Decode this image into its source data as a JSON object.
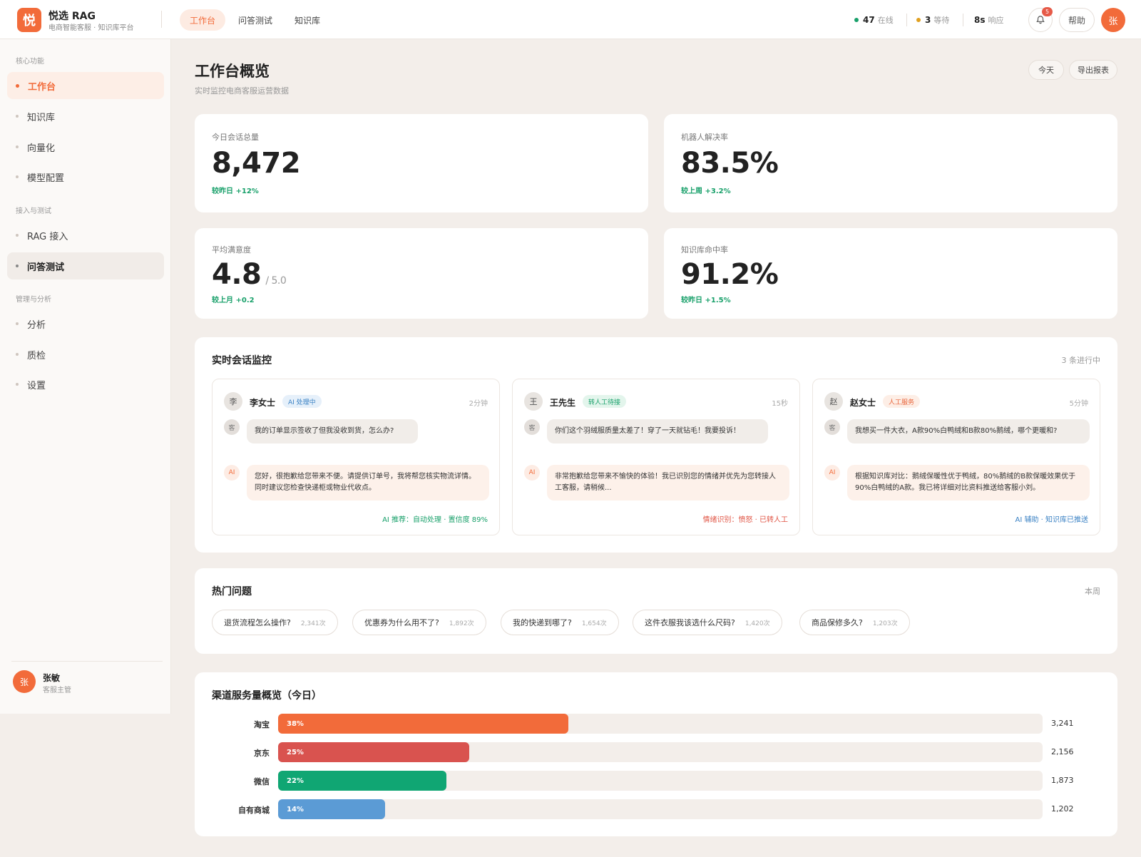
{
  "brand": {
    "logo_char": "悦",
    "name": "悦选 RAG",
    "sub": "电商智能客服 · 知识库平台"
  },
  "top_nav": [
    {
      "label": "工作台",
      "active": true
    },
    {
      "label": "问答测试",
      "active": false
    },
    {
      "label": "知识库",
      "active": false
    }
  ],
  "status": {
    "online": {
      "value": "47",
      "label": "在线",
      "color": "#18a06a"
    },
    "waiting": {
      "value": "3",
      "label": "等待",
      "color": "#e0a020"
    },
    "response": {
      "value": "8s",
      "label": "响应"
    }
  },
  "header": {
    "notif_count": "5",
    "help_label": "帮助",
    "avatar_char": "张"
  },
  "sidebar": {
    "groups": [
      {
        "label": "核心功能"
      },
      {
        "label": "接入与测试"
      },
      {
        "label": "管理与分析"
      }
    ],
    "items": [
      {
        "label": "工作台"
      },
      {
        "label": "知识库"
      },
      {
        "label": "向量化"
      },
      {
        "label": "模型配置"
      },
      {
        "label": "RAG 接入"
      },
      {
        "label": "问答测试"
      },
      {
        "label": "分析"
      },
      {
        "label": "质检"
      },
      {
        "label": "设置"
      }
    ],
    "user": {
      "avatar_char": "张",
      "name": "张敏",
      "role": "客服主管"
    }
  },
  "page": {
    "title": "工作台概览",
    "subtitle": "实时监控电商客服运营数据",
    "btn_today": "今天",
    "btn_export": "导出报表"
  },
  "kpis": [
    {
      "label": "今日会话总量",
      "value": "8,472",
      "unit": "",
      "change": "较昨日 +12%"
    },
    {
      "label": "机器人解决率",
      "value": "83.5%",
      "unit": "",
      "change": "较上周 +3.2%"
    },
    {
      "label": "平均满意度",
      "value": "4.8",
      "unit": "/ 5.0",
      "change": "较上月 +0.2"
    },
    {
      "label": "知识库命中率",
      "value": "91.2%",
      "unit": "",
      "change": "较昨日 +1.5%"
    }
  ],
  "monitor": {
    "title": "实时会话监控",
    "meta": "3 条进行中",
    "cust_tag": "客",
    "ai_tag": "AI",
    "conversations": [
      {
        "avatar": "李",
        "name": "李女士",
        "badge": "AI 处理中",
        "badge_color": "#3b82c4",
        "badge_bg": "#e6f0fa",
        "time": "2分钟",
        "customer_msg": "我的订单显示签收了但我没收到货，怎么办?",
        "ai_msg": "您好，很抱歉给您带来不便。请提供订单号，我将帮您核实物流详情。同时建议您检查快递柜或物业代收点。",
        "footer": "AI 推荐：自动处理 · 置信度 89%",
        "footer_color": "#18a06a"
      },
      {
        "avatar": "王",
        "name": "王先生",
        "badge": "转人工待接",
        "badge_color": "#18a06a",
        "badge_bg": "#e3f5ec",
        "time": "15秒",
        "customer_msg": "你们这个羽绒服质量太差了！穿了一天就钻毛！我要投诉！",
        "ai_msg": "非常抱歉给您带来不愉快的体验！我已识别您的情绪并优先为您转接人工客服，请稍候...",
        "footer": "情绪识别：愤怒 · 已转人工",
        "footer_color": "#e05545"
      },
      {
        "avatar": "赵",
        "name": "赵女士",
        "badge": "人工服务",
        "badge_color": "#e8643a",
        "badge_bg": "#fdeee6",
        "time": "5分钟",
        "customer_msg": "我想买一件大衣，A款90%白鸭绒和B款80%鹅绒，哪个更暖和?",
        "ai_msg": "根据知识库对比：鹅绒保暖性优于鸭绒，80%鹅绒的B款保暖效果优于90%白鸭绒的A款。我已将详细对比资料推送给客服小刘。",
        "footer": "AI 辅助 · 知识库已推送",
        "footer_color": "#3b82c4"
      }
    ]
  },
  "hot": {
    "title": "热门问题",
    "meta": "本周",
    "chips": [
      {
        "label": "退货流程怎么操作?",
        "count": "2,341次"
      },
      {
        "label": "优惠券为什么用不了?",
        "count": "1,892次"
      },
      {
        "label": "我的快递到哪了?",
        "count": "1,654次"
      },
      {
        "label": "这件衣服我该选什么尺码?",
        "count": "1,420次"
      },
      {
        "label": "商品保修多久?",
        "count": "1,203次"
      }
    ]
  },
  "channels": {
    "title": "渠道服务量概览（今日）",
    "rows": [
      {
        "name": "淘宝",
        "percent": 38,
        "percent_label": "38%",
        "value": "3,241",
        "color": "#f26b3a"
      },
      {
        "name": "京东",
        "percent": 25,
        "percent_label": "25%",
        "value": "2,156",
        "color": "#d9534f"
      },
      {
        "name": "微信",
        "percent": 22,
        "percent_label": "22%",
        "value": "1,873",
        "color": "#10a673"
      },
      {
        "name": "自有商城",
        "percent": 14,
        "percent_label": "14%",
        "value": "1,202",
        "color": "#5b9bd5"
      }
    ]
  }
}
